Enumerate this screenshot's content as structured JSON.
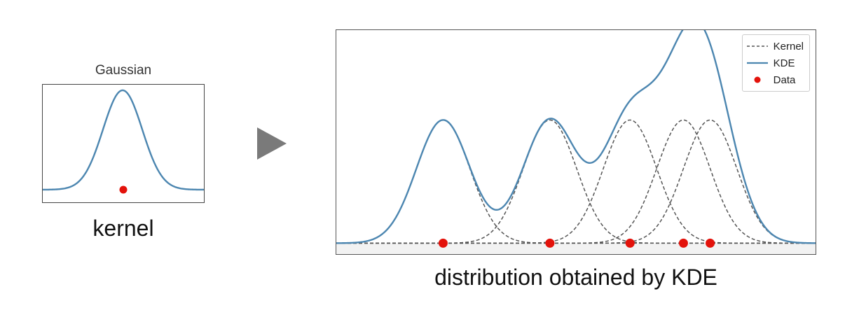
{
  "kernel": {
    "title": "Gaussian",
    "caption": "kernel"
  },
  "kde": {
    "caption": "distribution obtained by KDE"
  },
  "legend": {
    "kernel_label": "Kernel",
    "kde_label": "KDE",
    "data_label": "Data"
  },
  "colors": {
    "curve": "#4c86b0",
    "kernel_line": "#555555",
    "data_point": "#e3120b",
    "arrow": "#7a7a7a"
  },
  "chart_data": [
    {
      "type": "line",
      "title": "Gaussian",
      "series": [
        {
          "values": "gaussian kernel centered at data point"
        }
      ],
      "data_points": [
        0
      ],
      "xlim": [
        -3.4,
        3.4
      ]
    },
    {
      "type": "line",
      "title": "",
      "data_points": [
        2.0,
        4.0,
        5.5,
        6.5,
        7.0
      ],
      "bandwidth": 0.5,
      "kernel_peak": 1.0,
      "xlim": [
        0.0,
        9.0
      ],
      "ylim": [
        -0.1,
        1.73
      ]
    }
  ]
}
